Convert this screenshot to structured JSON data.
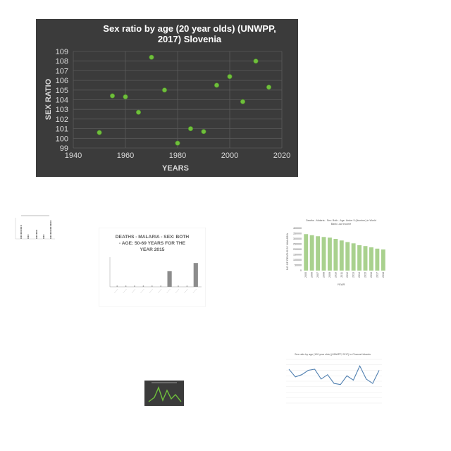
{
  "main": {
    "title_line1": "Sex ratio by age (20 year olds) (UNWPP,",
    "title_line2": "2017) Slovenia",
    "chart_data": {
      "type": "scatter",
      "title": "Sex ratio by age (20 year olds) (UNWPP, 2017) Slovenia",
      "xlabel": "YEARS",
      "ylabel": "SEX RATIO",
      "xlim": [
        1940,
        2020
      ],
      "ylim": [
        99,
        109
      ],
      "xticks": [
        1940,
        1960,
        1980,
        2000,
        2020
      ],
      "yticks": [
        99,
        100,
        101,
        102,
        103,
        104,
        105,
        106,
        107,
        108,
        109
      ],
      "grid": true,
      "x": [
        1950,
        1955,
        1960,
        1965,
        1970,
        1975,
        1980,
        1985,
        1990,
        1995,
        2000,
        2005,
        2010,
        2015
      ],
      "y": [
        100.6,
        104.4,
        104.3,
        102.7,
        108.4,
        105.0,
        99.5,
        101.0,
        100.7,
        105.5,
        106.4,
        103.8,
        108.0,
        105.3
      ]
    },
    "colors": {
      "background": "#3b3b3b",
      "marker": "#6fbf3c",
      "text": "#d9d9d9",
      "title": "#ffffff",
      "grid": "#5a5a5a"
    }
  },
  "thumb2": {
    "title_line1": "DEATHS - MALARIA - SEX: BOTH",
    "title_line2": "- AGE: 50-69 YEARS FOR THE",
    "title_line3": "YEAR 2015",
    "chart_data": {
      "type": "bar",
      "bars": [
        0,
        0,
        0,
        0,
        0,
        0,
        950,
        0,
        0,
        1450
      ],
      "ylim": [
        0,
        1800
      ]
    }
  },
  "thumb3": {
    "title_line1": "Deaths - Malaria - Sex: Both - Age: Under 5 (Number) in World",
    "title_line2": "Bank Low Income",
    "ylabel": "NO OF DEATHS BY MALARIA",
    "xlabel": "YEAR",
    "chart_data": {
      "type": "bar",
      "categories": [
        "2005",
        "2006",
        "2007",
        "2008",
        "2009",
        "2010",
        "2011",
        "2012",
        "2013",
        "2014",
        "2015",
        "2016",
        "2017",
        "2018"
      ],
      "values": [
        345000,
        335000,
        325000,
        318000,
        312000,
        300000,
        285000,
        270000,
        258000,
        240000,
        232000,
        220000,
        208000,
        200000
      ],
      "ylim": [
        0,
        400000
      ],
      "yticks": [
        "0",
        "50000",
        "100000",
        "150000",
        "200000",
        "250000",
        "300000",
        "350000",
        "400000"
      ]
    }
  },
  "thumb5": {
    "title": "Sex ratio by age (100 year olds) (UNWPP, 2017) in Channel Islands",
    "chart_data": {
      "type": "line",
      "values": [
        31,
        24,
        26,
        30,
        31,
        22,
        26,
        18,
        17,
        25,
        21,
        34,
        22,
        18,
        30
      ]
    }
  }
}
